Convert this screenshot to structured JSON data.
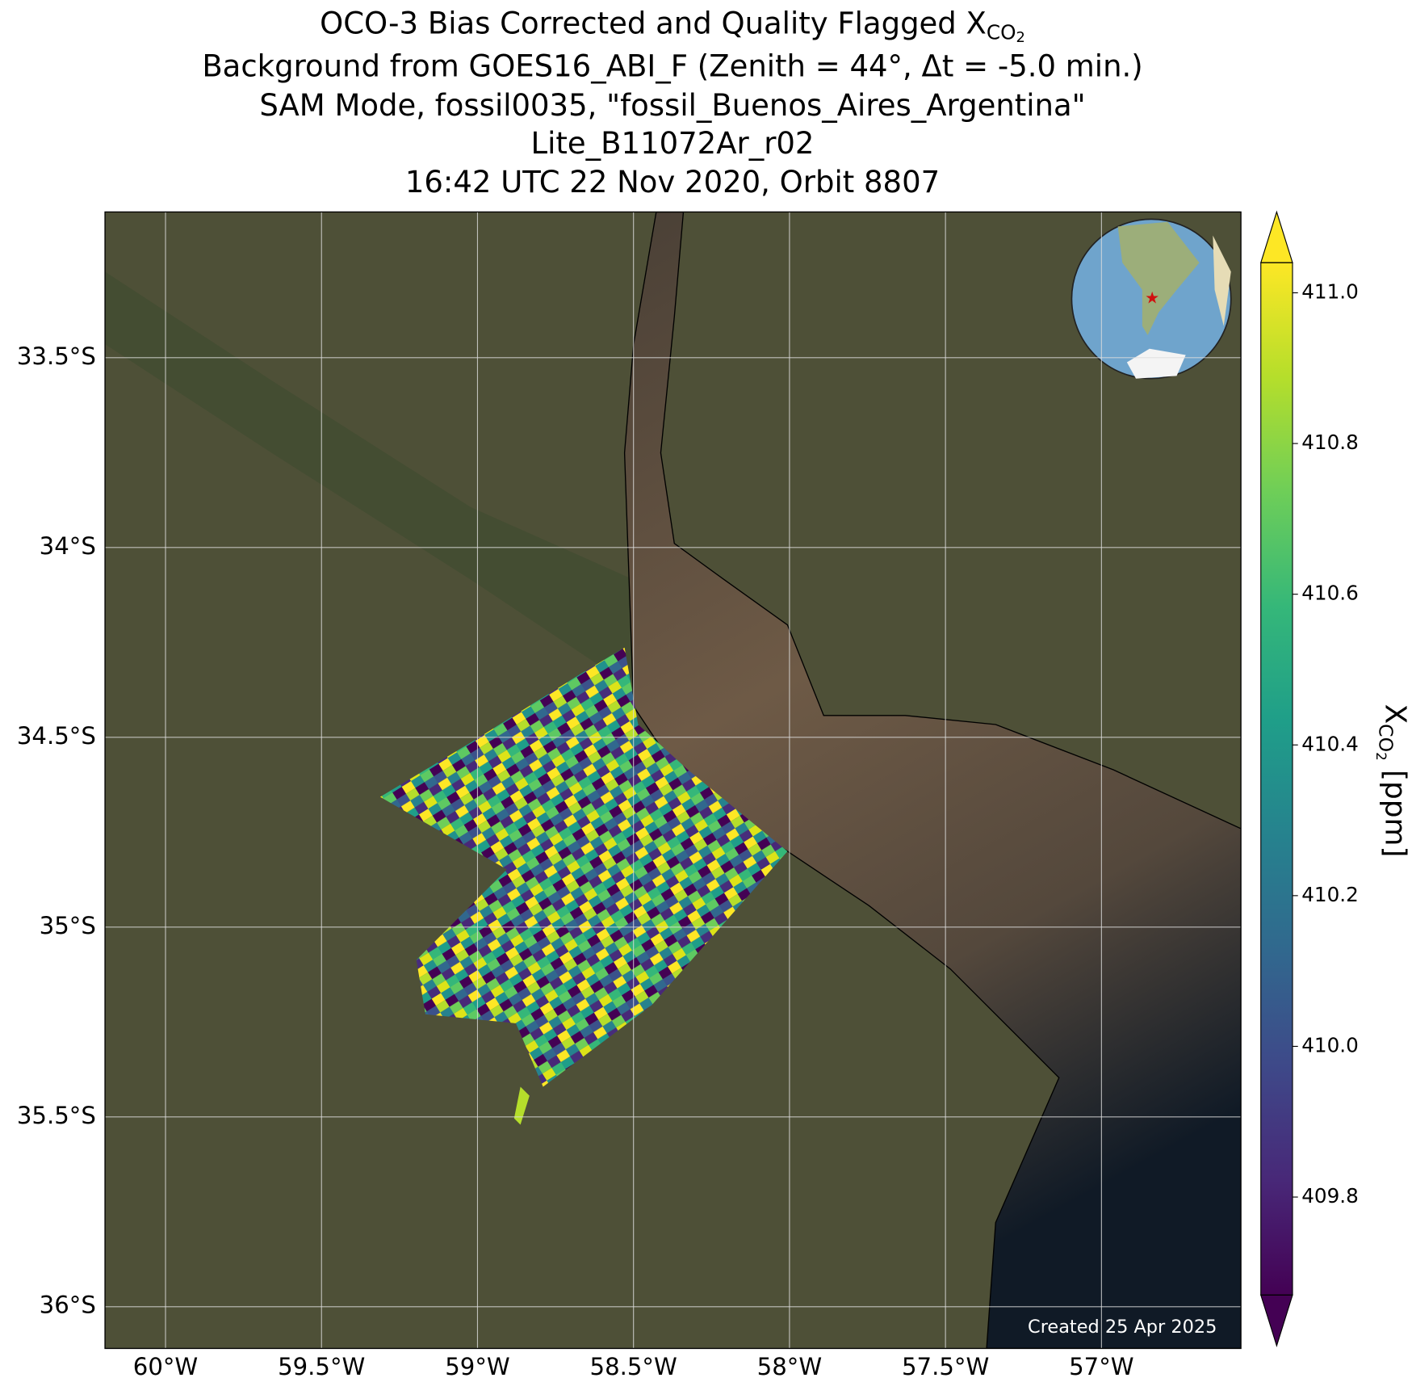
{
  "chart_data": {
    "type": "map",
    "title": {
      "text": "OCO-3 Bias Corrected and Quality Flagged X",
      "sub": "CO",
      "sub2": "2"
    },
    "subtitle": [
      "Background from GOES16_ABI_F (Zenith = 44°, Δt = -5.0 min.)",
      "SAM Mode, fossil0035, \"fossil_Buenos_Aires_Argentina\"",
      "Lite_B11072Ar_r02",
      "16:42 UTC 22 Nov 2020, Orbit 8807"
    ],
    "xlim": [
      -60.194,
      -56.553
    ],
    "ylim": [
      -33.116,
      -36.11
    ],
    "xticks": [
      {
        "value": -60,
        "label": "60°W"
      },
      {
        "value": -59.5,
        "label": "59.5°W"
      },
      {
        "value": -59,
        "label": "59°W"
      },
      {
        "value": -58.5,
        "label": "58.5°W"
      },
      {
        "value": -58,
        "label": "58°W"
      },
      {
        "value": -57.5,
        "label": "57.5°W"
      },
      {
        "value": -57,
        "label": "57°W"
      }
    ],
    "yticks": [
      {
        "value": -33.5,
        "label": "33.5°S"
      },
      {
        "value": -34,
        "label": "34°S"
      },
      {
        "value": -34.5,
        "label": "34.5°S"
      },
      {
        "value": -35,
        "label": "35°S"
      },
      {
        "value": -35.5,
        "label": "35.5°S"
      },
      {
        "value": -36,
        "label": "36°S"
      }
    ],
    "grid": true,
    "colorbar": {
      "label": "X",
      "label_sub": "CO",
      "label_sub2": "2",
      "label_unit": "[ppm]",
      "colormap": "viridis",
      "extend": "both",
      "clim": [
        409.67,
        411.04
      ],
      "ticks": [
        409.8,
        {
          "value": 410.0,
          "label": "410.0"
        },
        410.2,
        410.4,
        410.6,
        410.8,
        {
          "value": 411.0,
          "label": "411.0"
        }
      ]
    },
    "footer": "Created 25 Apr 2025"
  }
}
